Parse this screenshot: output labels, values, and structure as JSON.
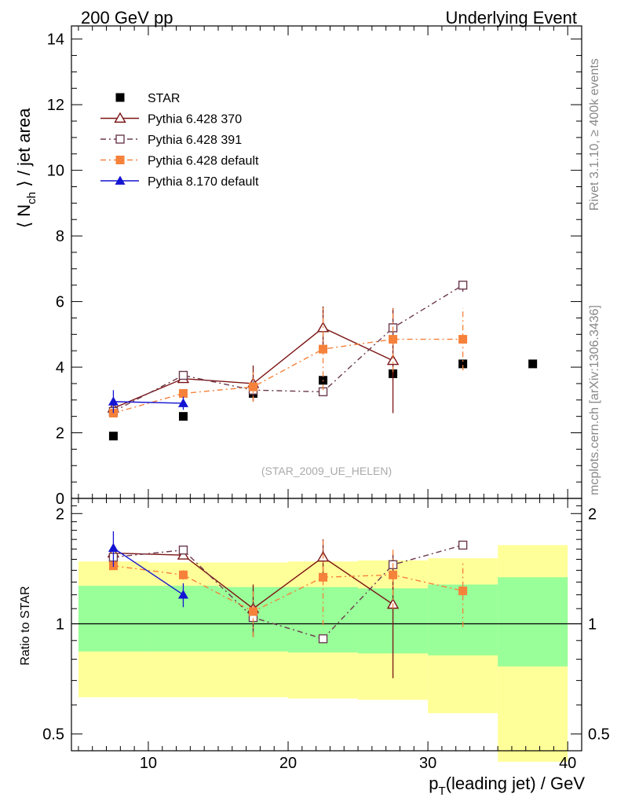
{
  "header": {
    "left_title": "200 GeV pp",
    "right_title": "Underlying Event"
  },
  "side_labels": {
    "rivet": "Rivet 3.1.10, ≥ 400k events",
    "mcplots": "mcplots.cern.ch [arXiv:1306.3436]"
  },
  "watermark": "(STAR_2009_UE_HELEN)",
  "legend": [
    {
      "label": "STAR",
      "color": "#000000",
      "marker": "square-filled",
      "line": "none"
    },
    {
      "label": "Pythia 6.428 370",
      "color": "#7b1414",
      "marker": "triangle-open",
      "line": "solid"
    },
    {
      "label": "Pythia 6.428 391",
      "color": "#6b3a4e",
      "marker": "square-open",
      "line": "dashdot"
    },
    {
      "label": "Pythia 6.428 default",
      "color": "#f5813a",
      "marker": "square-filled",
      "line": "dashdot"
    },
    {
      "label": "Pythia 8.170 default",
      "color": "#1414d2",
      "marker": "triangle-filled",
      "line": "solid"
    }
  ],
  "chart_data": [
    {
      "type": "scatter",
      "panel": "main",
      "ylabel_parts": [
        "⟨ N",
        "ch",
        " ⟩ / jet area"
      ],
      "xlim": [
        4.5,
        41
      ],
      "ylim": [
        0,
        14.4
      ],
      "y_ticks": [
        0,
        2,
        4,
        6,
        8,
        10,
        12,
        14
      ],
      "x_ticks": [
        10,
        20,
        30,
        40
      ],
      "series": [
        {
          "name": "STAR",
          "x": [
            7.5,
            12.5,
            17.5,
            22.5,
            27.5,
            32.5,
            37.5
          ],
          "y": [
            1.9,
            2.5,
            3.2,
            3.6,
            3.8,
            4.1,
            4.1
          ],
          "err": [
            0,
            0,
            0,
            0,
            0,
            0,
            0
          ]
        },
        {
          "name": "Pythia 6.428 370",
          "x": [
            7.5,
            12.5,
            17.5,
            22.5,
            27.5
          ],
          "y": [
            2.75,
            3.65,
            3.5,
            5.2,
            4.2
          ],
          "err": [
            0.1,
            0.1,
            0.55,
            0.65,
            1.6
          ]
        },
        {
          "name": "Pythia 6.428 391",
          "x": [
            7.5,
            12.5,
            17.5,
            22.5,
            27.5,
            32.5
          ],
          "y": [
            2.65,
            3.75,
            3.3,
            3.25,
            5.2,
            6.5
          ],
          "err": [
            0.05,
            0.1,
            0.3,
            0.05,
            0.25,
            0.2
          ]
        },
        {
          "name": "Pythia 6.428 default",
          "x": [
            7.5,
            12.5,
            17.5,
            22.5,
            27.5,
            32.5
          ],
          "y": [
            2.6,
            3.2,
            3.4,
            4.55,
            4.85,
            4.85
          ],
          "err": [
            0.05,
            0.1,
            0.45,
            1.25,
            1.0,
            0.95
          ]
        },
        {
          "name": "Pythia 8.170 default",
          "x": [
            7.5,
            12.5
          ],
          "y": [
            2.95,
            2.9
          ],
          "err": [
            0.35,
            0.2
          ]
        }
      ]
    },
    {
      "type": "scatter",
      "panel": "ratio",
      "ylabel": "Ratio to STAR",
      "xlabel_parts": [
        "p",
        "T",
        "(leading jet) / GeV"
      ],
      "xlim": [
        4.5,
        41
      ],
      "ylim": [
        0.45,
        2.2
      ],
      "y_ticks": [
        0.5,
        1,
        2
      ],
      "x_ticks": [
        10,
        20,
        30,
        40
      ],
      "log_y": true,
      "reference_line": 1,
      "bands": {
        "x_edges": [
          5,
          10,
          15,
          20,
          25,
          30,
          35,
          40
        ],
        "outer_low": [
          0.63,
          0.63,
          0.63,
          0.625,
          0.62,
          0.57,
          0.42
        ],
        "outer_high": [
          1.48,
          1.47,
          1.47,
          1.48,
          1.49,
          1.51,
          1.64
        ],
        "inner_low": [
          0.84,
          0.84,
          0.84,
          0.835,
          0.83,
          0.82,
          0.765
        ],
        "inner_high": [
          1.27,
          1.27,
          1.26,
          1.26,
          1.25,
          1.28,
          1.34
        ],
        "outer_color": "#ffff99",
        "inner_color": "#99ff99"
      },
      "series": [
        {
          "name": "Pythia 6.428 370",
          "x": [
            7.5,
            12.5,
            17.5,
            22.5,
            27.5
          ],
          "y": [
            1.56,
            1.54,
            1.1,
            1.52,
            1.13
          ],
          "err": [
            0.04,
            0.04,
            0.18,
            0.18,
            0.42
          ]
        },
        {
          "name": "Pythia 6.428 391",
          "x": [
            7.5,
            12.5,
            17.5,
            22.5,
            27.5,
            32.5
          ],
          "y": [
            1.52,
            1.59,
            1.04,
            0.91,
            1.45,
            1.64
          ],
          "err": [
            0.03,
            0.04,
            0.1,
            0.02,
            0.1,
            0.04
          ]
        },
        {
          "name": "Pythia 6.428 default",
          "x": [
            7.5,
            12.5,
            17.5,
            22.5,
            27.5,
            32.5
          ],
          "y": [
            1.44,
            1.36,
            1.08,
            1.34,
            1.36,
            1.23
          ],
          "err": [
            0.03,
            0.04,
            0.16,
            0.35,
            0.26,
            0.25
          ]
        },
        {
          "name": "Pythia 8.170 default",
          "x": [
            7.5,
            12.5
          ],
          "y": [
            1.61,
            1.2
          ],
          "err": [
            0.18,
            0.09
          ]
        }
      ]
    }
  ]
}
